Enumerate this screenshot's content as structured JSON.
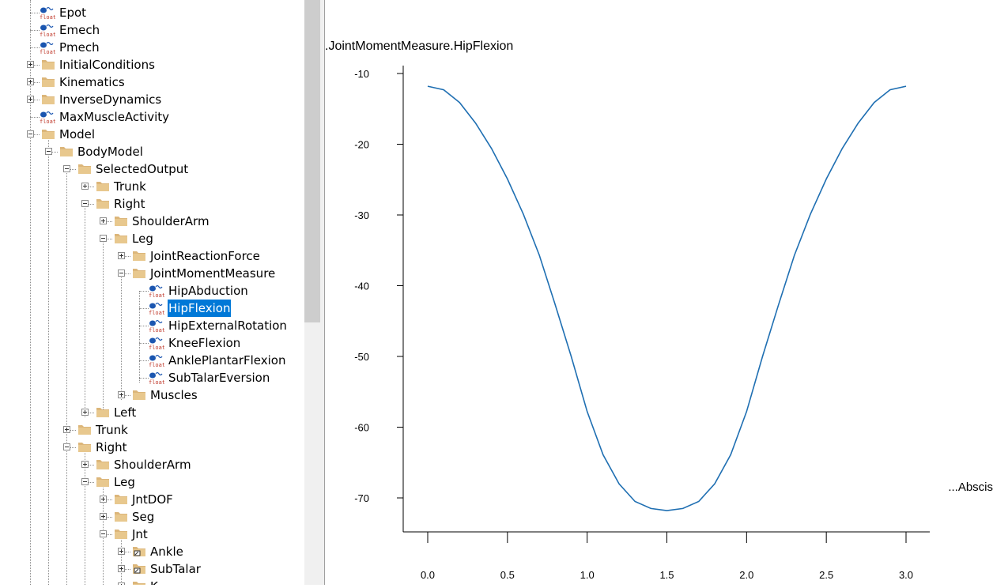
{
  "tree": {
    "nodes": [
      {
        "label": "Epot",
        "level": 1,
        "kind": "float"
      },
      {
        "label": "Emech",
        "level": 1,
        "kind": "float"
      },
      {
        "label": "Pmech",
        "level": 1,
        "kind": "float"
      },
      {
        "label": "InitialConditions",
        "level": 1,
        "kind": "folder",
        "state": "collapsed"
      },
      {
        "label": "Kinematics",
        "level": 1,
        "kind": "folder",
        "state": "collapsed"
      },
      {
        "label": "InverseDynamics",
        "level": 1,
        "kind": "folder",
        "state": "collapsed"
      },
      {
        "label": "MaxMuscleActivity",
        "level": 1,
        "kind": "float"
      },
      {
        "label": "Model",
        "level": 1,
        "kind": "folder",
        "state": "expanded"
      },
      {
        "label": "BodyModel",
        "level": 2,
        "kind": "folder",
        "state": "expanded"
      },
      {
        "label": "SelectedOutput",
        "level": 3,
        "kind": "folder",
        "state": "expanded"
      },
      {
        "label": "Trunk",
        "level": 4,
        "kind": "folder",
        "state": "collapsed"
      },
      {
        "label": "Right",
        "level": 4,
        "kind": "folder",
        "state": "expanded"
      },
      {
        "label": "ShoulderArm",
        "level": 5,
        "kind": "folder",
        "state": "collapsed"
      },
      {
        "label": "Leg",
        "level": 5,
        "kind": "folder",
        "state": "expanded"
      },
      {
        "label": "JointReactionForce",
        "level": 6,
        "kind": "folder",
        "state": "collapsed"
      },
      {
        "label": "JointMomentMeasure",
        "level": 6,
        "kind": "folder",
        "state": "expanded"
      },
      {
        "label": "HipAbduction",
        "level": 7,
        "kind": "float"
      },
      {
        "label": "HipFlexion",
        "level": 7,
        "kind": "float",
        "selected": true
      },
      {
        "label": "HipExternalRotation",
        "level": 7,
        "kind": "float"
      },
      {
        "label": "KneeFlexion",
        "level": 7,
        "kind": "float"
      },
      {
        "label": "AnklePlantarFlexion",
        "level": 7,
        "kind": "float"
      },
      {
        "label": "SubTalarEversion",
        "level": 7,
        "kind": "float"
      },
      {
        "label": "Muscles",
        "level": 6,
        "kind": "folder",
        "state": "collapsed"
      },
      {
        "label": "Left",
        "level": 4,
        "kind": "folder",
        "state": "collapsed"
      },
      {
        "label": "Trunk",
        "level": 3,
        "kind": "folder",
        "state": "collapsed"
      },
      {
        "label": "Right",
        "level": 3,
        "kind": "folder",
        "state": "expanded"
      },
      {
        "label": "ShoulderArm",
        "level": 4,
        "kind": "folder",
        "state": "collapsed"
      },
      {
        "label": "Leg",
        "level": 4,
        "kind": "folder",
        "state": "expanded"
      },
      {
        "label": "JntDOF",
        "level": 5,
        "kind": "folder",
        "state": "collapsed"
      },
      {
        "label": "Seg",
        "level": 5,
        "kind": "folder",
        "state": "collapsed"
      },
      {
        "label": "Jnt",
        "level": 5,
        "kind": "folder",
        "state": "expanded"
      },
      {
        "label": "Ankle",
        "level": 6,
        "kind": "folder-ref",
        "state": "collapsed"
      },
      {
        "label": "SubTalar",
        "level": 6,
        "kind": "folder-ref",
        "state": "collapsed"
      },
      {
        "label": "K",
        "level": 6,
        "kind": "folder",
        "state": "collapsed"
      }
    ],
    "icon_text": "float"
  },
  "colors": {
    "selection": "#0078d7",
    "folder": "#dcb67a",
    "line": "#1f6fb2"
  },
  "chart_data": {
    "type": "line",
    "title": ".JointMomentMeasure.HipFlexion",
    "xlabel": "...Abscis",
    "ylabel": "",
    "xlim": [
      -0.15,
      3.15
    ],
    "ylim": [
      -74.6,
      -9.4
    ],
    "xticks": [
      0.0,
      0.5,
      1.0,
      1.5,
      2.0,
      2.5,
      3.0
    ],
    "xtick_labels": [
      "0.0",
      "0.5",
      "1.0",
      "1.5",
      "2.0",
      "2.5",
      "3.0"
    ],
    "yticks": [
      -10,
      -20,
      -30,
      -40,
      -50,
      -60,
      -70
    ],
    "ytick_labels": [
      "-10",
      "-20",
      "-30",
      "-40",
      "-50",
      "-60",
      "-70"
    ],
    "grid": false,
    "series": [
      {
        "x": [
          0.0,
          0.1,
          0.2,
          0.3,
          0.4,
          0.5,
          0.6,
          0.7,
          0.8,
          0.9,
          1.0,
          1.1,
          1.2,
          1.3,
          1.4,
          1.5,
          1.6,
          1.7,
          1.8,
          1.9,
          2.0,
          2.1,
          2.2,
          2.3,
          2.4,
          2.5,
          2.6,
          2.7,
          2.8,
          2.9,
          3.0
        ],
        "y": [
          -11.8,
          -12.3,
          -14.1,
          -17.0,
          -20.6,
          -24.9,
          -29.9,
          -35.7,
          -42.7,
          -50.0,
          -57.8,
          -63.9,
          -68.0,
          -70.5,
          -71.5,
          -71.8,
          -71.5,
          -70.5,
          -68.0,
          -63.9,
          -57.8,
          -50.0,
          -42.7,
          -35.7,
          -29.9,
          -24.9,
          -20.6,
          -17.0,
          -14.1,
          -12.3,
          -11.8
        ]
      }
    ]
  }
}
